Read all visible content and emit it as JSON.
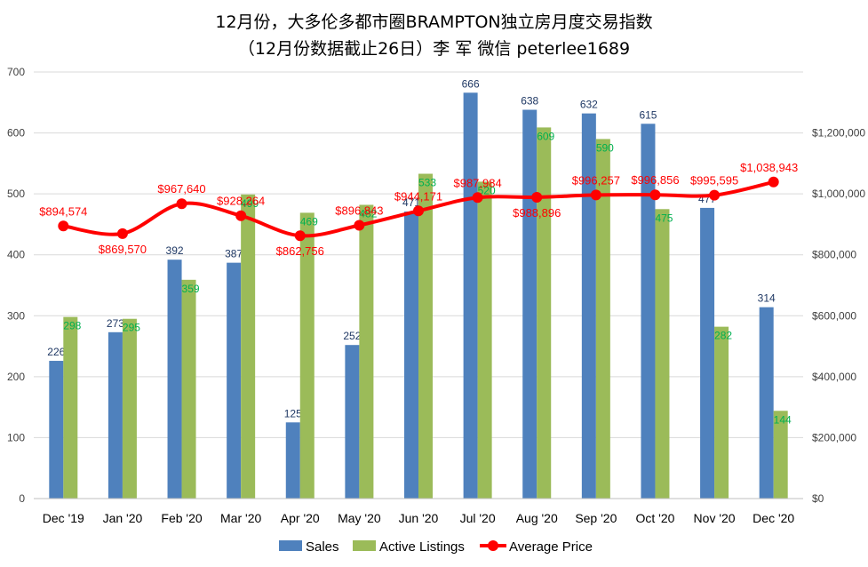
{
  "chart_data": {
    "type": "bar+line",
    "title": "12月份，大多伦多都市圈BRAMPTON独立房月度交易指数",
    "subtitle": "（12月份数据截止26日）李 军  微信  peterlee1689",
    "categories": [
      "Dec '19",
      "Jan '20",
      "Feb '20",
      "Mar '20",
      "Apr '20",
      "May '20",
      "Jun '20",
      "Jul '20",
      "Aug '20",
      "Sep '20",
      "Oct '20",
      "Nov '20",
      "Dec '20"
    ],
    "series": [
      {
        "name": "Sales",
        "type": "bar",
        "axis": "left",
        "color": "#4f81bd",
        "values": [
          226,
          273,
          392,
          387,
          125,
          252,
          471,
          666,
          638,
          632,
          615,
          477,
          314
        ],
        "labels": [
          "226",
          "273",
          "392",
          "387",
          "125",
          "252",
          "471",
          "666",
          "638",
          "632",
          "615",
          "477",
          "314"
        ]
      },
      {
        "name": "Active Listings",
        "type": "bar",
        "axis": "left",
        "color": "#9bbb59",
        "values": [
          298,
          295,
          359,
          499,
          469,
          482,
          533,
          520,
          609,
          590,
          475,
          282,
          144
        ],
        "labels": [
          "298",
          "295",
          "359",
          "499",
          "469",
          "482",
          "533",
          "520",
          "609",
          "590",
          "475",
          "282",
          "144"
        ]
      },
      {
        "name": "Average Price",
        "type": "line",
        "axis": "right",
        "color": "#ff0000",
        "values": [
          894574,
          869570,
          967640,
          928264,
          862756,
          896843,
          944171,
          987984,
          988896,
          996257,
          996856,
          995595,
          1038943
        ],
        "labels": [
          "$894,574",
          "$869,570",
          "$967,640",
          "$928,264",
          "$862,756",
          "$896,843",
          "$944,171",
          "$987,984",
          "$988,896",
          "$996,257",
          "$996,856",
          "$995,595",
          "$1,038,943"
        ]
      }
    ],
    "y_left": {
      "min": 0,
      "max": 700,
      "ticks": [
        0,
        100,
        200,
        300,
        400,
        500,
        600,
        700
      ],
      "tick_labels": [
        "0",
        "100",
        "200",
        "300",
        "400",
        "500",
        "600",
        "700"
      ]
    },
    "y_right": {
      "min": 0,
      "max": 1400000,
      "ticks": [
        0,
        200000,
        400000,
        600000,
        800000,
        1000000,
        1200000
      ],
      "tick_labels": [
        "$0",
        "$200,000",
        "$400,000",
        "$600,000",
        "$800,000",
        "$1,000,000",
        "$1,200,000"
      ]
    },
    "legend": {
      "position": "bottom",
      "entries": [
        "Sales",
        "Active Listings",
        "Average Price"
      ]
    },
    "grid": true
  }
}
